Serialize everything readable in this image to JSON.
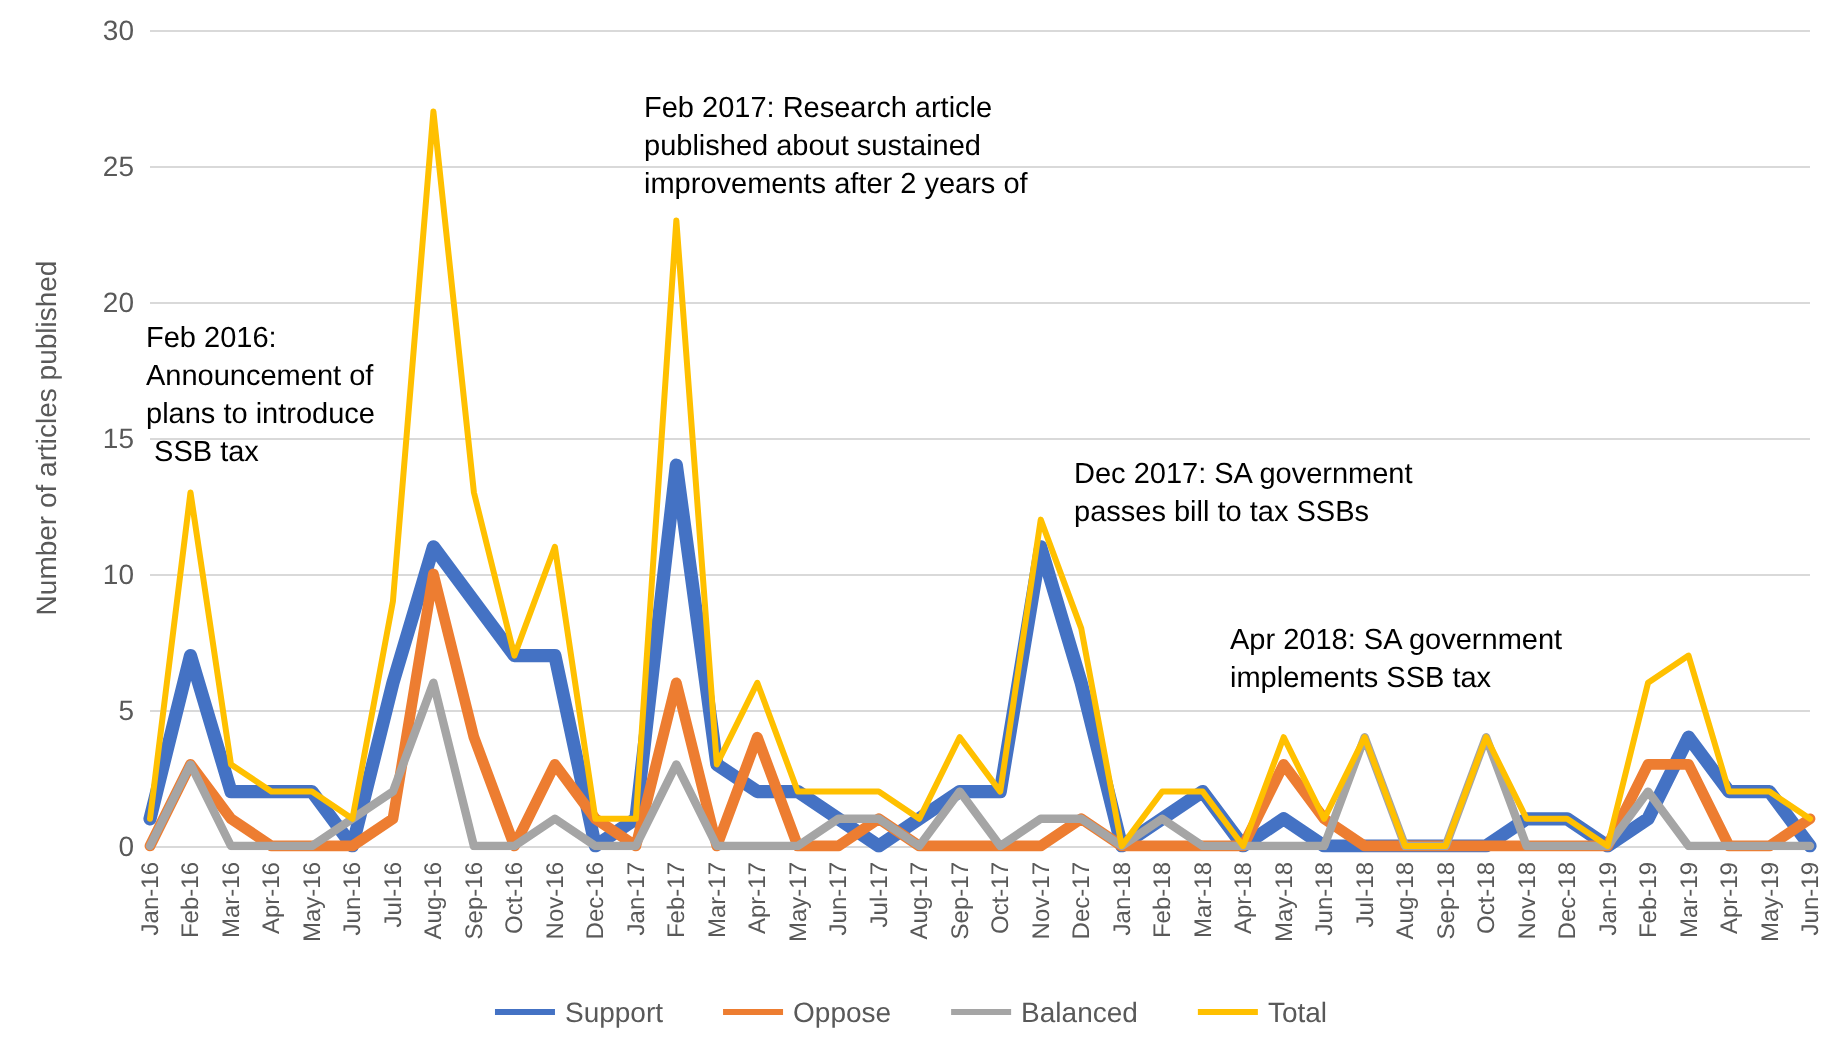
{
  "chart_data": {
    "type": "line",
    "ylabel": "Number of articles published",
    "categories": [
      "Jan-16",
      "Feb-16",
      "Mar-16",
      "Apr-16",
      "May-16",
      "Jun-16",
      "Jul-16",
      "Aug-16",
      "Sep-16",
      "Oct-16",
      "Nov-16",
      "Dec-16",
      "Jan-17",
      "Feb-17",
      "Mar-17",
      "Apr-17",
      "May-17",
      "Jun-17",
      "Jul-17",
      "Aug-17",
      "Sep-17",
      "Oct-17",
      "Nov-17",
      "Dec-17",
      "Jan-18",
      "Feb-18",
      "Mar-18",
      "Apr-18",
      "May-18",
      "Jun-18",
      "Jul-18",
      "Aug-18",
      "Sep-18",
      "Oct-18",
      "Nov-18",
      "Dec-18",
      "Jan-19",
      "Feb-19",
      "Mar-19",
      "Apr-19",
      "May-19",
      "Jun-19"
    ],
    "series": [
      {
        "name": "Support",
        "color": "#4472c4",
        "values": [
          1,
          7,
          2,
          2,
          2,
          0,
          6,
          11,
          9,
          7,
          7,
          0,
          1,
          14,
          3,
          2,
          2,
          1,
          0,
          1,
          2,
          2,
          11,
          6,
          0,
          1,
          2,
          0,
          1,
          0,
          0,
          0,
          0,
          0,
          1,
          1,
          0,
          1,
          4,
          2,
          2,
          0
        ]
      },
      {
        "name": "Oppose",
        "color": "#ed7d31",
        "values": [
          0,
          3,
          1,
          0,
          0,
          0,
          1,
          10,
          4,
          0,
          3,
          1,
          0,
          6,
          0,
          4,
          0,
          0,
          1,
          0,
          0,
          0,
          0,
          1,
          0,
          0,
          0,
          0,
          3,
          1,
          0,
          0,
          0,
          0,
          0,
          0,
          0,
          3,
          3,
          0,
          0,
          1
        ]
      },
      {
        "name": "Balanced",
        "color": "#a5a5a5",
        "values": [
          0,
          3,
          0,
          0,
          0,
          1,
          2,
          6,
          0,
          0,
          1,
          0,
          0,
          3,
          0,
          0,
          0,
          1,
          1,
          0,
          2,
          0,
          1,
          1,
          0,
          1,
          0,
          0,
          0,
          0,
          4,
          0,
          0,
          4,
          0,
          0,
          0,
          2,
          0,
          0,
          0,
          0
        ]
      },
      {
        "name": "Total",
        "color": "#ffc000",
        "values": [
          1,
          13,
          3,
          2,
          2,
          1,
          9,
          27,
          13,
          7,
          11,
          1,
          1,
          23,
          3,
          6,
          2,
          2,
          2,
          1,
          4,
          2,
          12,
          8,
          0,
          2,
          2,
          0,
          4,
          1,
          4,
          0,
          0,
          4,
          1,
          1,
          0,
          6,
          7,
          2,
          2,
          1
        ]
      }
    ],
    "ylim": [
      0,
      30
    ],
    "yticks": [
      0,
      5,
      10,
      15,
      20,
      25,
      30
    ],
    "grid": "y",
    "legend": "bottom",
    "marker": "none",
    "line_style": "solid",
    "annotations": [
      "Feb 2016: Announcement of plans to introduce SSB tax",
      "Feb 2017: Research article published about sustained improvements after 2 years of",
      "Dec 2017: SA government passes bill to tax SSBs",
      "Apr 2018: SA government implements SSB tax"
    ]
  }
}
